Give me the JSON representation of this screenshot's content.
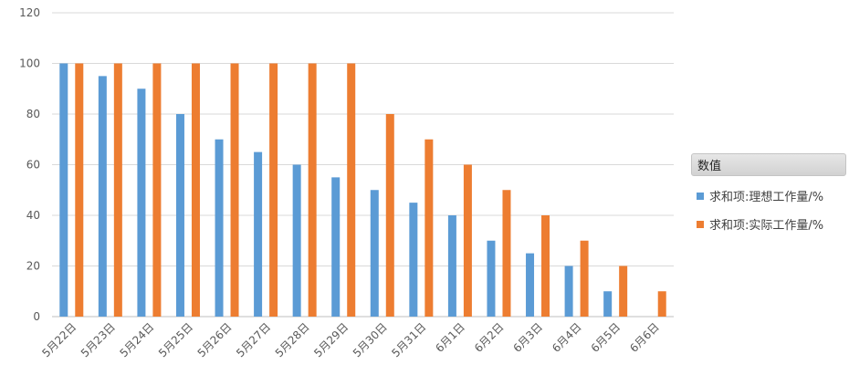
{
  "colors": {
    "ideal": "#5b9bd5",
    "actual": "#ed7d31",
    "grid": "#d9d9d9",
    "axis": "#bfbfbf"
  },
  "chart_data": {
    "type": "bar",
    "title": "",
    "xlabel": "",
    "ylabel": "",
    "ylim": [
      0,
      120
    ],
    "yticks": [
      0,
      20,
      40,
      60,
      80,
      100,
      120
    ],
    "grid": true,
    "legend_position": "right",
    "categories": [
      "5月22日",
      "5月23日",
      "5月24日",
      "5月25日",
      "5月26日",
      "5月27日",
      "5月28日",
      "5月29日",
      "5月30日",
      "5月31日",
      "6月1日",
      "6月2日",
      "6月3日",
      "6月4日",
      "6月5日",
      "6月6日"
    ],
    "series": [
      {
        "name": "求和项:理想工作量/%",
        "color": "#5b9bd5",
        "values": [
          100,
          95,
          90,
          80,
          70,
          65,
          60,
          55,
          50,
          45,
          40,
          30,
          25,
          20,
          10,
          null
        ]
      },
      {
        "name": "求和项:实际工作量/%",
        "color": "#ed7d31",
        "values": [
          100,
          100,
          100,
          100,
          100,
          100,
          100,
          100,
          80,
          70,
          60,
          50,
          40,
          30,
          20,
          10
        ]
      }
    ]
  },
  "legend": {
    "title": "数值"
  }
}
